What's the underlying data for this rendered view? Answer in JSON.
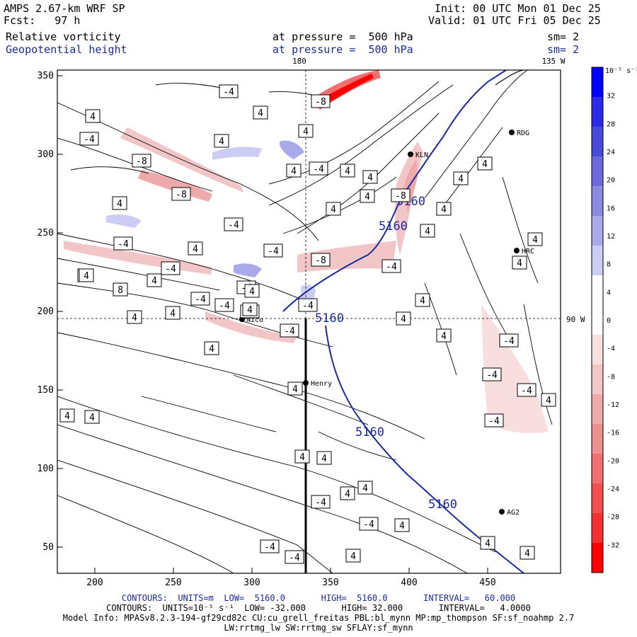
{
  "header": {
    "model": "AMPS 2.67-km WRF SP",
    "forecast": "Fcst:   97 h",
    "init": "Init: 00 UTC Mon 01 Dec 25",
    "valid": "Valid: 01 UTC Fri 05 Dec 25",
    "field1_name": "Relative vorticity",
    "field1_level": "at pressure =  500 hPa",
    "field1_smooth": "sm= 2",
    "field2_name": "Geopotential height",
    "field2_level": "at pressure =  500 hPa",
    "field2_smooth": "sm= 2"
  },
  "map": {
    "x_ticks": [
      "200",
      "250",
      "300",
      "350",
      "400",
      "450"
    ],
    "y_ticks": [
      "350",
      "300",
      "250",
      "200",
      "150",
      "100",
      "50"
    ],
    "meridian_labels": {
      "top_180": "180",
      "top_135": "135 W",
      "right_90": "90 W"
    },
    "stations": [
      "Nico",
      "KLN",
      "RDG",
      "HRC",
      "Henry",
      "AG2"
    ],
    "height_labels": [
      "5160",
      "5160",
      "5160",
      "5160",
      "5160"
    ],
    "vorticity_labels_neg": [
      "-4",
      "-4",
      "-8",
      "-8",
      "-4",
      "-4",
      "-8",
      "-4",
      "-8",
      "-4",
      "-8",
      "-4",
      "-4",
      "-4",
      "-4",
      "-8",
      "-4",
      "-4",
      "-4",
      "-4",
      "-4",
      "-4",
      "-4",
      "-4",
      "-4",
      "-4",
      "-4"
    ],
    "vorticity_labels_pos": [
      "4",
      "4",
      "4",
      "4",
      "4",
      "4",
      "4",
      "4",
      "8",
      "4",
      "4",
      "4",
      "4",
      "4",
      "4",
      "4",
      "4",
      "4",
      "4",
      "4",
      "4",
      "4",
      "4",
      "4",
      "4",
      "4",
      "4",
      "4",
      "4",
      "4",
      "4",
      "4",
      "4",
      "4",
      "4",
      "4",
      "4",
      "4",
      "4",
      "4",
      "4"
    ]
  },
  "colorbar": {
    "unit": "10⁻⁵ s⁻¹",
    "labels": [
      "32",
      "28",
      "24",
      "20",
      "16",
      "12",
      "8",
      "4",
      "0",
      "-4",
      "-8",
      "-12",
      "-16",
      "-20",
      "-24",
      "-28",
      "-32"
    ],
    "colors": [
      "#0000ff",
      "#2a2ae8",
      "#4a4ad8",
      "#6a6ad8",
      "#8a8ae0",
      "#aaaaea",
      "#ccccf4",
      "#ffffff",
      "#ffffff",
      "#f8dede",
      "#f2c6c6",
      "#eeaaaa",
      "#ec9090",
      "#ee7070",
      "#f05050",
      "#f43030",
      "#ff0000"
    ]
  },
  "footer": {
    "line1": "CONTOURS:  UNITS=m  LOW=  5160.0       HIGH=  5160.0       INTERVAL=   60.000",
    "line2": "CONTOURS:  UNITS=10⁻⁵ s⁻¹  LOW= -32.000       HIGH= 32.000       INTERVAL=   4.0000",
    "line3": "Model Info: MPASv8.2.3-194-gf29cd82c CU:cu_grell_freitas PBL:bl_mynn MP:mp_thompson SF:sf_noahmp 2.7",
    "line4": "LW:rrtmg_lw SW:rrtmg_sw SFLAY:sf_mynn"
  }
}
